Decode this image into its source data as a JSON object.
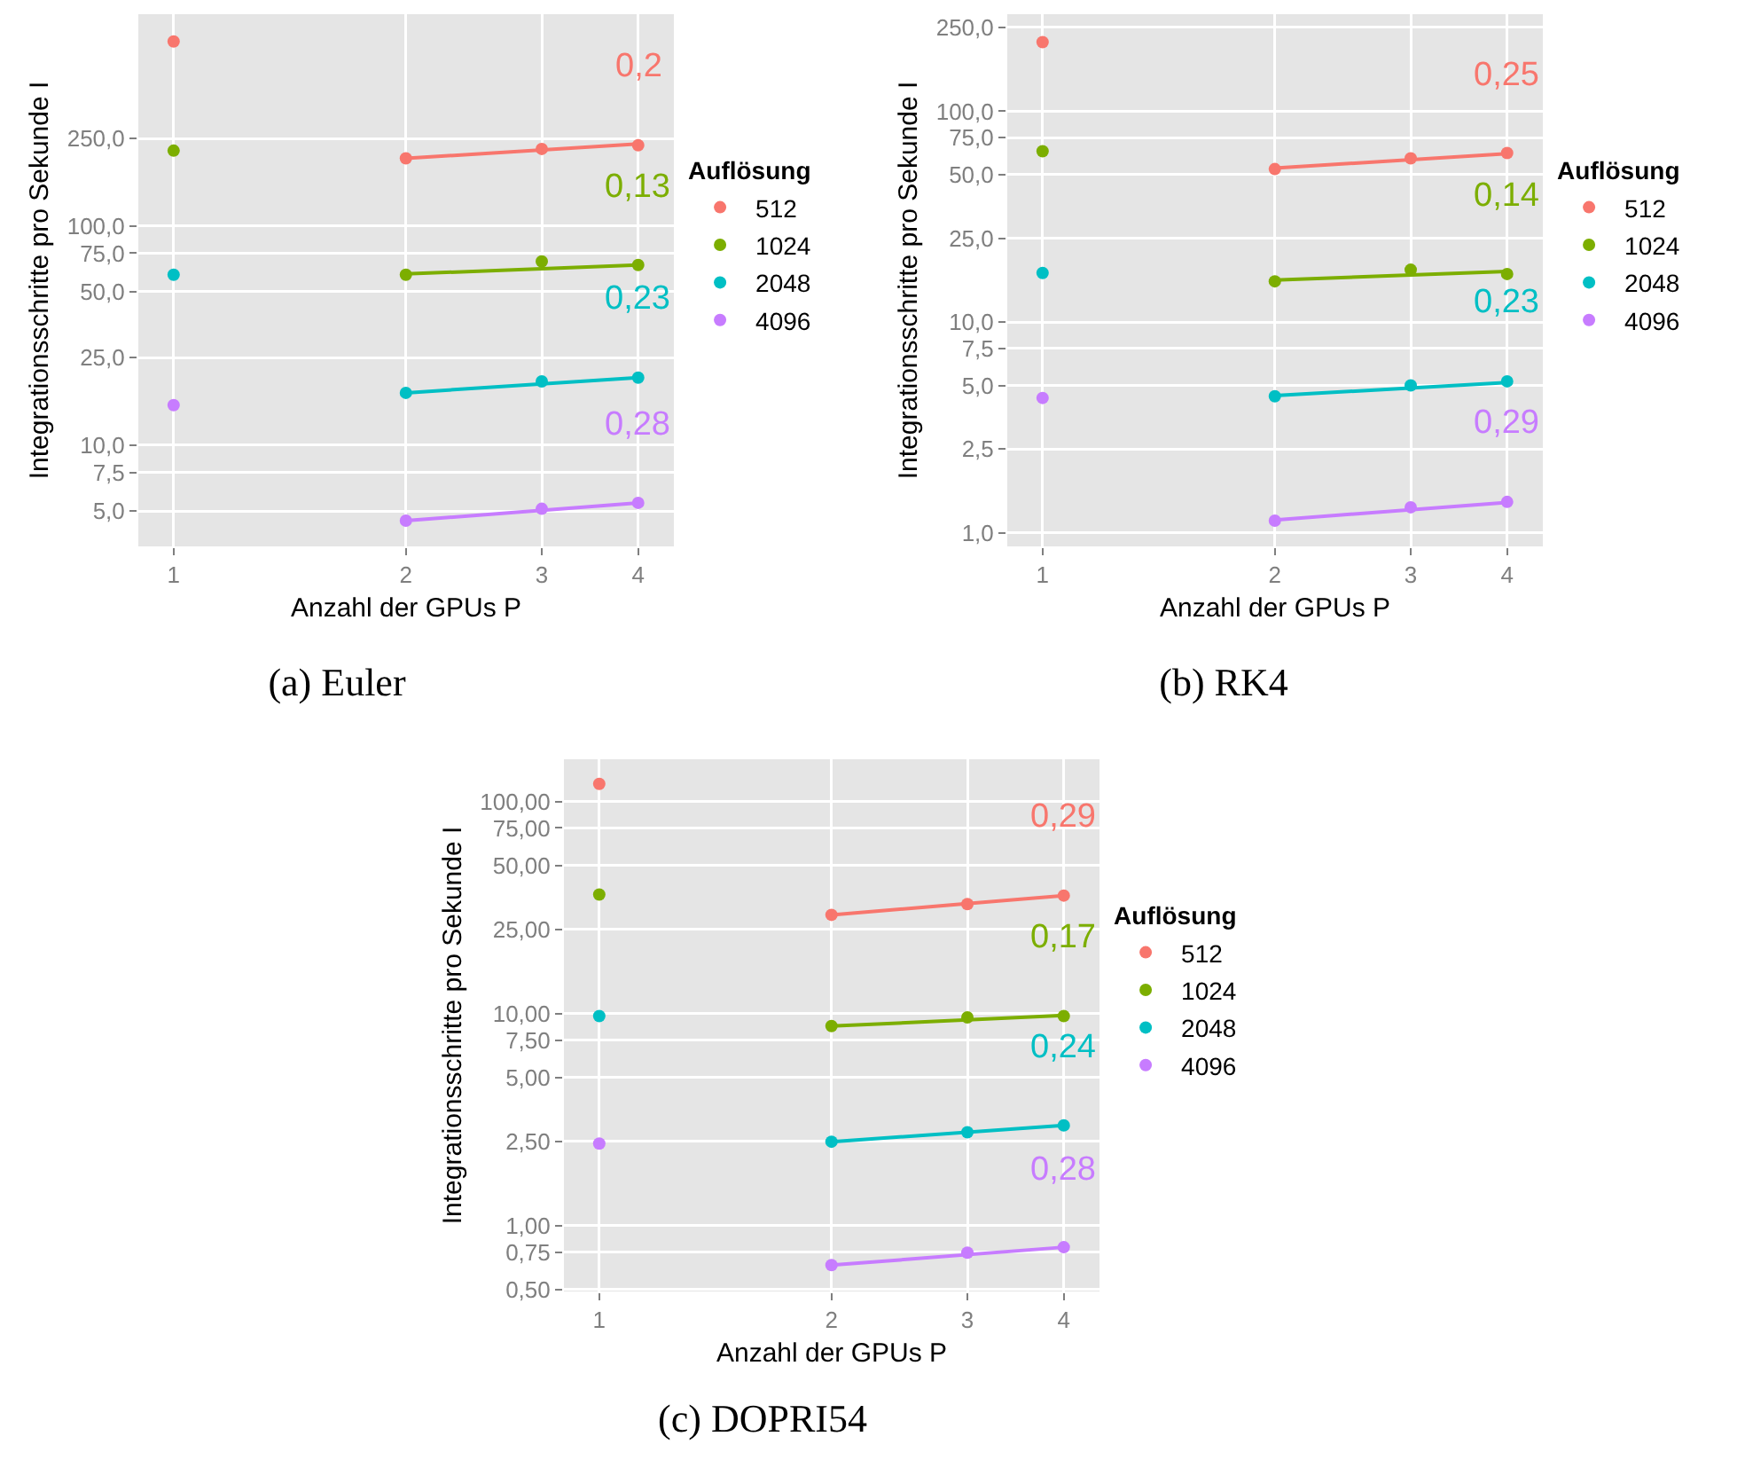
{
  "chart_data": [
    {
      "type": "scatter",
      "xlabel": "Anzahl der GPUs P",
      "ylabel": "Integrationsschritte pro Sekunde I",
      "legend_title": "Auflösung",
      "legend": "right",
      "log": "xy",
      "grid": true,
      "xlim": [
        0.9,
        4.45
      ],
      "xticks": [
        1,
        2,
        3,
        4
      ],
      "ylim": [
        3.45,
        922
      ],
      "yticks": [
        {
          "value": 5,
          "label": "5,0"
        },
        {
          "value": 7.5,
          "label": "7,5"
        },
        {
          "value": 10,
          "label": "10,0"
        },
        {
          "value": 25,
          "label": "25,0"
        },
        {
          "value": 50,
          "label": "50,0"
        },
        {
          "value": 75,
          "label": "75,0"
        },
        {
          "value": 100,
          "label": "100,0"
        },
        {
          "value": 250,
          "label": "250,0"
        }
      ],
      "series": [
        {
          "name": "512",
          "color": "#f8766d",
          "marker": "circle",
          "x": [
            1,
            2,
            3,
            4
          ],
          "values": [
            692,
            203,
            224,
            233
          ]
        },
        {
          "name": "1024",
          "color": "#7cae00",
          "marker": "circle",
          "x": [
            1,
            2,
            3,
            4
          ],
          "values": [
            220,
            59.8,
            68.7,
            66.2
          ]
        },
        {
          "name": "2048",
          "color": "#00bfc4",
          "marker": "circle",
          "x": [
            1,
            2,
            3,
            4
          ],
          "values": [
            59.8,
            17.3,
            19.5,
            20.3
          ]
        },
        {
          "name": "4096",
          "color": "#c77cff",
          "marker": "circle",
          "x": [
            1,
            2,
            3,
            4
          ],
          "values": [
            15.2,
            4.52,
            5.12,
            5.45
          ]
        },
        {
          "type": "line",
          "color": "#f8766d",
          "marker": "none",
          "x": [
            2,
            4
          ],
          "values": [
            203,
            236
          ]
        },
        {
          "type": "line",
          "color": "#7cae00",
          "marker": "none",
          "x": [
            2,
            4
          ],
          "values": [
            60.3,
            66.2
          ]
        },
        {
          "type": "line",
          "color": "#00bfc4",
          "marker": "none",
          "x": [
            2,
            4
          ],
          "values": [
            17.3,
            20.3
          ]
        },
        {
          "type": "line",
          "color": "#c77cff",
          "marker": "none",
          "x": [
            2,
            4
          ],
          "values": [
            4.52,
            5.45
          ]
        }
      ],
      "annotations": [
        "0,2",
        "0,13",
        "0,23",
        "0,28",
        "(a) Euler"
      ]
    },
    {
      "type": "scatter",
      "xlabel": "Anzahl der GPUs P",
      "ylabel": "Integrationsschritte pro Sekunde I",
      "legend_title": "Auflösung",
      "legend": "right",
      "log": "xy",
      "grid": true,
      "xlim": [
        0.9,
        4.45
      ],
      "xticks": [
        1,
        2,
        3,
        4
      ],
      "ylim": [
        0.861,
        289
      ],
      "yticks": [
        {
          "value": 1,
          "label": "1,0"
        },
        {
          "value": 2.5,
          "label": "2,5"
        },
        {
          "value": 5,
          "label": "5,0"
        },
        {
          "value": 7.5,
          "label": "7,5"
        },
        {
          "value": 10,
          "label": "10,0"
        },
        {
          "value": 25,
          "label": "25,0"
        },
        {
          "value": 50,
          "label": "50,0"
        },
        {
          "value": 75,
          "label": "75,0"
        },
        {
          "value": 100,
          "label": "100,0"
        },
        {
          "value": 250,
          "label": "250,0"
        }
      ],
      "series": [
        {
          "name": "512",
          "color": "#f8766d",
          "marker": "circle",
          "x": [
            1,
            2,
            3,
            4
          ],
          "values": [
            213,
            53.2,
            59.8,
            63.4
          ]
        },
        {
          "name": "1024",
          "color": "#7cae00",
          "marker": "circle",
          "x": [
            1,
            2,
            3,
            4
          ],
          "values": [
            64.6,
            15.6,
            17.7,
            16.9
          ]
        },
        {
          "name": "2048",
          "color": "#00bfc4",
          "marker": "circle",
          "x": [
            1,
            2,
            3,
            4
          ],
          "values": [
            17.1,
            4.44,
            5.0,
            5.23
          ]
        },
        {
          "name": "4096",
          "color": "#c77cff",
          "marker": "circle",
          "x": [
            1,
            2,
            3,
            4
          ],
          "values": [
            4.36,
            1.14,
            1.32,
            1.4
          ]
        },
        {
          "type": "line",
          "color": "#f8766d",
          "marker": "none",
          "x": [
            2,
            4
          ],
          "values": [
            53.7,
            63.0
          ]
        },
        {
          "type": "line",
          "color": "#7cae00",
          "marker": "none",
          "x": [
            2,
            4
          ],
          "values": [
            15.8,
            17.4
          ]
        },
        {
          "type": "line",
          "color": "#00bfc4",
          "marker": "none",
          "x": [
            2,
            4
          ],
          "values": [
            4.47,
            5.16
          ]
        },
        {
          "type": "line",
          "color": "#c77cff",
          "marker": "none",
          "x": [
            2,
            4
          ],
          "values": [
            1.15,
            1.39
          ]
        }
      ],
      "annotations": [
        "0,25",
        "0,14",
        "0,23",
        "0,29",
        "(b) RK4"
      ]
    },
    {
      "type": "scatter",
      "xlabel": "Anzahl der GPUs P",
      "ylabel": "Integrationsschritte pro Sekunde I",
      "legend_title": "Auflösung",
      "legend": "right",
      "log": "xy",
      "grid": true,
      "xlim": [
        0.9,
        4.45
      ],
      "xticks": [
        1,
        2,
        3,
        4
      ],
      "ylim": [
        0.49,
        158
      ],
      "yticks": [
        {
          "value": 0.5,
          "label": "0,50"
        },
        {
          "value": 0.75,
          "label": "0,75"
        },
        {
          "value": 1,
          "label": "1,00"
        },
        {
          "value": 2.5,
          "label": "2,50"
        },
        {
          "value": 5,
          "label": "5,00"
        },
        {
          "value": 7.5,
          "label": "7,50"
        },
        {
          "value": 10,
          "label": "10,00"
        },
        {
          "value": 25,
          "label": "25,00"
        },
        {
          "value": 50,
          "label": "50,00"
        },
        {
          "value": 75,
          "label": "75,00"
        },
        {
          "value": 100,
          "label": "100,00"
        }
      ],
      "series": [
        {
          "name": "512",
          "color": "#f8766d",
          "marker": "circle",
          "x": [
            1,
            2,
            3,
            4
          ],
          "values": [
            121,
            29.2,
            32.8,
            36.0
          ]
        },
        {
          "name": "1024",
          "color": "#7cae00",
          "marker": "circle",
          "x": [
            1,
            2,
            3,
            4
          ],
          "values": [
            36.4,
            8.73,
            9.6,
            9.74
          ]
        },
        {
          "name": "2048",
          "color": "#00bfc4",
          "marker": "circle",
          "x": [
            1,
            2,
            3,
            4
          ],
          "values": [
            9.74,
            2.49,
            2.76,
            2.97
          ]
        },
        {
          "name": "4096",
          "color": "#c77cff",
          "marker": "circle",
          "x": [
            1,
            2,
            3,
            4
          ],
          "values": [
            2.44,
            0.652,
            0.747,
            0.792
          ]
        },
        {
          "type": "line",
          "color": "#f8766d",
          "marker": "none",
          "x": [
            2,
            4
          ],
          "values": [
            29.2,
            36.0
          ]
        },
        {
          "type": "line",
          "color": "#7cae00",
          "marker": "none",
          "x": [
            2,
            4
          ],
          "values": [
            8.73,
            9.8
          ]
        },
        {
          "type": "line",
          "color": "#00bfc4",
          "marker": "none",
          "x": [
            2,
            4
          ],
          "values": [
            2.49,
            2.97
          ]
        },
        {
          "type": "line",
          "color": "#c77cff",
          "marker": "none",
          "x": [
            2,
            4
          ],
          "values": [
            0.652,
            0.792
          ]
        }
      ],
      "annotations": [
        "0,29",
        "0,17",
        "0,24",
        "0,28",
        "(c) DOPRI54"
      ]
    }
  ]
}
